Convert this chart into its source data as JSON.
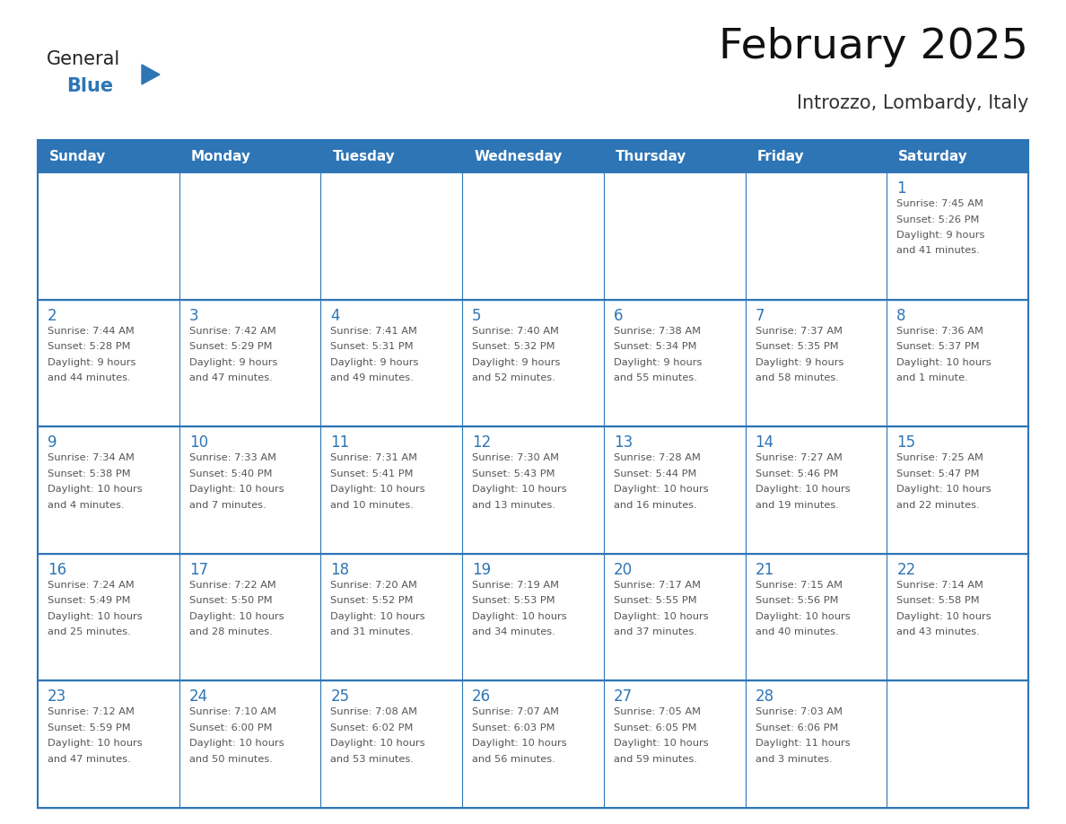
{
  "title": "February 2025",
  "subtitle": "Introzzo, Lombardy, Italy",
  "header_color": "#2E75B6",
  "header_text_color": "#FFFFFF",
  "cell_bg_color": "#FFFFFF",
  "border_color": "#2E75B6",
  "day_number_color": "#2E75B6",
  "detail_text_color": "#555555",
  "days_of_week": [
    "Sunday",
    "Monday",
    "Tuesday",
    "Wednesday",
    "Thursday",
    "Friday",
    "Saturday"
  ],
  "logo_general_color": "#222222",
  "logo_blue_color": "#2E75B6",
  "calendar_data": [
    [
      null,
      null,
      null,
      null,
      null,
      null,
      {
        "day": 1,
        "sunrise": "7:45 AM",
        "sunset": "5:26 PM",
        "daylight": "9 hours\nand 41 minutes."
      }
    ],
    [
      {
        "day": 2,
        "sunrise": "7:44 AM",
        "sunset": "5:28 PM",
        "daylight": "9 hours\nand 44 minutes."
      },
      {
        "day": 3,
        "sunrise": "7:42 AM",
        "sunset": "5:29 PM",
        "daylight": "9 hours\nand 47 minutes."
      },
      {
        "day": 4,
        "sunrise": "7:41 AM",
        "sunset": "5:31 PM",
        "daylight": "9 hours\nand 49 minutes."
      },
      {
        "day": 5,
        "sunrise": "7:40 AM",
        "sunset": "5:32 PM",
        "daylight": "9 hours\nand 52 minutes."
      },
      {
        "day": 6,
        "sunrise": "7:38 AM",
        "sunset": "5:34 PM",
        "daylight": "9 hours\nand 55 minutes."
      },
      {
        "day": 7,
        "sunrise": "7:37 AM",
        "sunset": "5:35 PM",
        "daylight": "9 hours\nand 58 minutes."
      },
      {
        "day": 8,
        "sunrise": "7:36 AM",
        "sunset": "5:37 PM",
        "daylight": "10 hours\nand 1 minute."
      }
    ],
    [
      {
        "day": 9,
        "sunrise": "7:34 AM",
        "sunset": "5:38 PM",
        "daylight": "10 hours\nand 4 minutes."
      },
      {
        "day": 10,
        "sunrise": "7:33 AM",
        "sunset": "5:40 PM",
        "daylight": "10 hours\nand 7 minutes."
      },
      {
        "day": 11,
        "sunrise": "7:31 AM",
        "sunset": "5:41 PM",
        "daylight": "10 hours\nand 10 minutes."
      },
      {
        "day": 12,
        "sunrise": "7:30 AM",
        "sunset": "5:43 PM",
        "daylight": "10 hours\nand 13 minutes."
      },
      {
        "day": 13,
        "sunrise": "7:28 AM",
        "sunset": "5:44 PM",
        "daylight": "10 hours\nand 16 minutes."
      },
      {
        "day": 14,
        "sunrise": "7:27 AM",
        "sunset": "5:46 PM",
        "daylight": "10 hours\nand 19 minutes."
      },
      {
        "day": 15,
        "sunrise": "7:25 AM",
        "sunset": "5:47 PM",
        "daylight": "10 hours\nand 22 minutes."
      }
    ],
    [
      {
        "day": 16,
        "sunrise": "7:24 AM",
        "sunset": "5:49 PM",
        "daylight": "10 hours\nand 25 minutes."
      },
      {
        "day": 17,
        "sunrise": "7:22 AM",
        "sunset": "5:50 PM",
        "daylight": "10 hours\nand 28 minutes."
      },
      {
        "day": 18,
        "sunrise": "7:20 AM",
        "sunset": "5:52 PM",
        "daylight": "10 hours\nand 31 minutes."
      },
      {
        "day": 19,
        "sunrise": "7:19 AM",
        "sunset": "5:53 PM",
        "daylight": "10 hours\nand 34 minutes."
      },
      {
        "day": 20,
        "sunrise": "7:17 AM",
        "sunset": "5:55 PM",
        "daylight": "10 hours\nand 37 minutes."
      },
      {
        "day": 21,
        "sunrise": "7:15 AM",
        "sunset": "5:56 PM",
        "daylight": "10 hours\nand 40 minutes."
      },
      {
        "day": 22,
        "sunrise": "7:14 AM",
        "sunset": "5:58 PM",
        "daylight": "10 hours\nand 43 minutes."
      }
    ],
    [
      {
        "day": 23,
        "sunrise": "7:12 AM",
        "sunset": "5:59 PM",
        "daylight": "10 hours\nand 47 minutes."
      },
      {
        "day": 24,
        "sunrise": "7:10 AM",
        "sunset": "6:00 PM",
        "daylight": "10 hours\nand 50 minutes."
      },
      {
        "day": 25,
        "sunrise": "7:08 AM",
        "sunset": "6:02 PM",
        "daylight": "10 hours\nand 53 minutes."
      },
      {
        "day": 26,
        "sunrise": "7:07 AM",
        "sunset": "6:03 PM",
        "daylight": "10 hours\nand 56 minutes."
      },
      {
        "day": 27,
        "sunrise": "7:05 AM",
        "sunset": "6:05 PM",
        "daylight": "10 hours\nand 59 minutes."
      },
      {
        "day": 28,
        "sunrise": "7:03 AM",
        "sunset": "6:06 PM",
        "daylight": "11 hours\nand 3 minutes."
      },
      null
    ]
  ]
}
